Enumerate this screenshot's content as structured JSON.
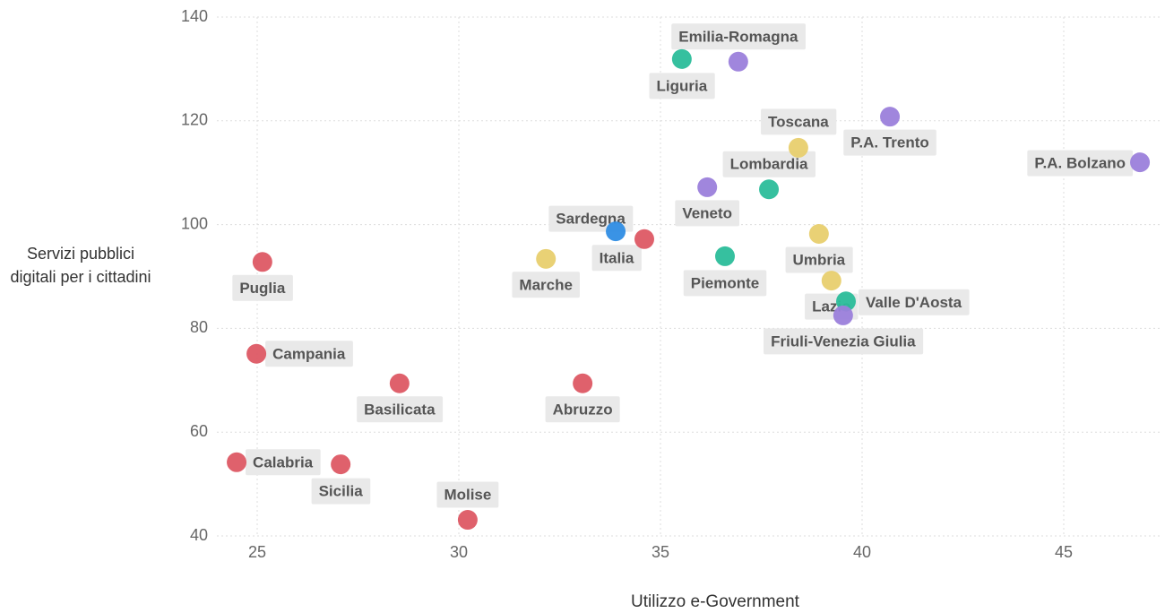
{
  "chart_data": {
    "type": "scatter",
    "xlabel": "Utilizzo e-Government",
    "ylabel": "Servizi pubblici digitali per i cittadini",
    "xlim": [
      24,
      47.4
    ],
    "xticks": [
      25,
      30,
      35,
      40,
      45
    ],
    "ylim": [
      40,
      140
    ],
    "yticks": [
      40,
      60,
      80,
      100,
      120,
      140
    ],
    "grid": true,
    "labels": [
      "Liguria",
      "Emilia-Romagna",
      "P.A. Trento",
      "Toscana",
      "P.A. Bolzano",
      "Lombardia",
      "Veneto",
      "Sardegna",
      "Italia",
      "Umbria",
      "Marche",
      "Piemonte",
      "Puglia",
      "Lazio",
      "Valle D'Aosta",
      "Friuli-Venezia Giulia",
      "Campania",
      "Basilicata",
      "Abruzzo",
      "Calabria",
      "Sicilia",
      "Molise"
    ],
    "x": [
      35.53,
      36.93,
      40.69,
      38.42,
      46.89,
      37.69,
      36.16,
      33.89,
      34.6,
      38.93,
      32.16,
      36.6,
      25.13,
      39.24,
      39.6,
      39.53,
      24.98,
      28.53,
      33.07,
      24.49,
      27.07,
      30.22
    ],
    "values": [
      131.9,
      131.4,
      120.8,
      114.8,
      112.0,
      106.8,
      107.2,
      98.7,
      97.2,
      98.2,
      93.4,
      93.9,
      92.8,
      89.2,
      85.2,
      82.5,
      75.1,
      69.4,
      69.4,
      54.2,
      53.8,
      43.1
    ],
    "colors": [
      "#2bbd9a",
      "#9b7fdb",
      "#9b7fdb",
      "#e8cf6e",
      "#9b7fdb",
      "#2bbd9a",
      "#9b7fdb",
      "#2f8de4",
      "#dd5864",
      "#e8cf6e",
      "#e8cf6e",
      "#2bbd9a",
      "#dd5864",
      "#e8cf6e",
      "#2bbd9a",
      "#9b7fdb",
      "#dd5864",
      "#dd5864",
      "#dd5864",
      "#dd5864",
      "#dd5864",
      "#dd5864"
    ]
  }
}
